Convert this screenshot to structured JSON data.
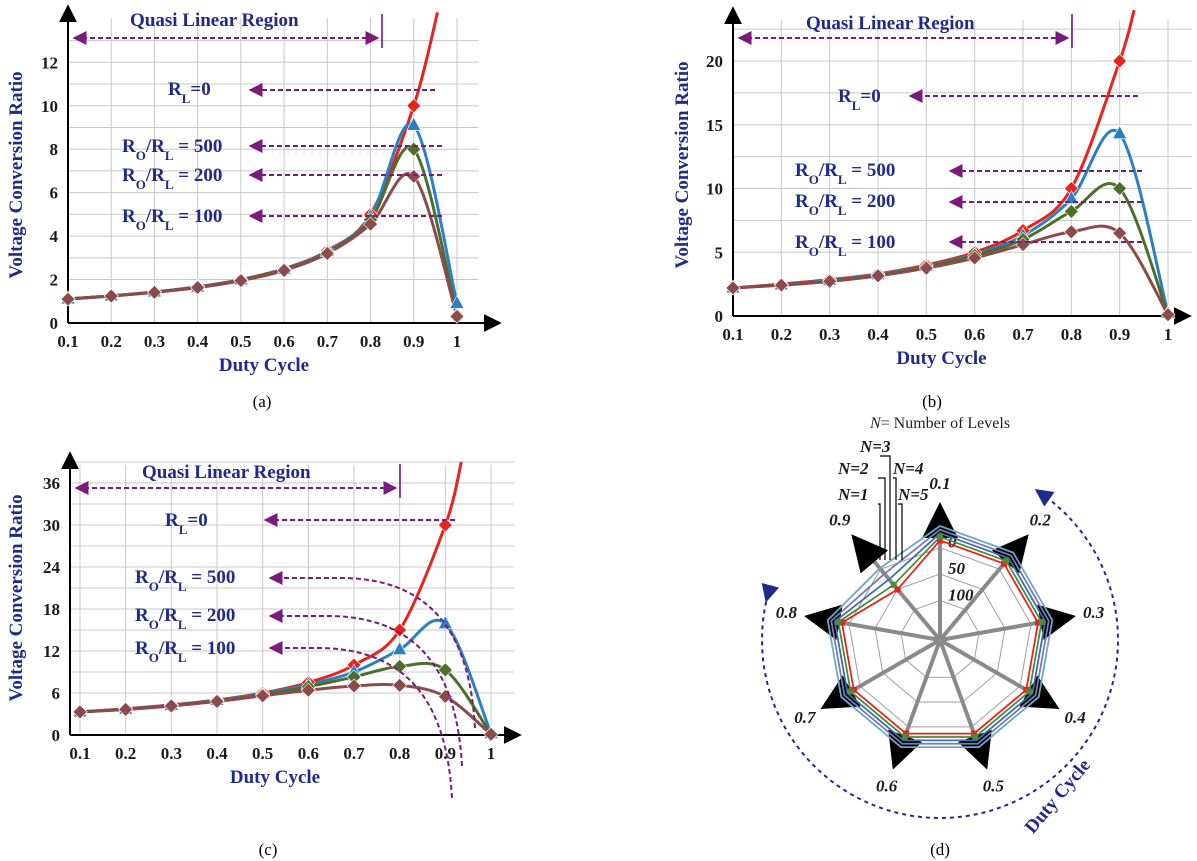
{
  "chart_data": [
    {
      "type": "line",
      "caption": "(a)",
      "xlabel": "Duty Cycle",
      "ylabel": "Voltage Conversion Ratio",
      "x_ticks": [
        "0.1",
        "0.2",
        "0.3",
        "0.4",
        "0.5",
        "0.6",
        "0.7",
        "0.8",
        "0.9",
        "1"
      ],
      "y_ticks": [
        "0",
        "2",
        "4",
        "6",
        "8",
        "10",
        "12"
      ],
      "xlim": [
        0.1,
        1.05
      ],
      "ylim": [
        0,
        14.5
      ],
      "region_label": "Quasi Linear Region",
      "region_range": [
        0.1,
        0.8
      ],
      "x": [
        0.1,
        0.2,
        0.3,
        0.4,
        0.5,
        0.6,
        0.7,
        0.8,
        0.9,
        1.0
      ],
      "series": [
        {
          "label": "Rₗ=0",
          "label_main": "R",
          "label_sub": "L",
          "label_tail": "=0",
          "color": "#e8231c",
          "marker": "diamond",
          "values": [
            1.11,
            1.25,
            1.43,
            1.67,
            2.0,
            2.5,
            3.33,
            5.0,
            10.0,
            null
          ],
          "curve_to": [
            0.955,
            14.3
          ]
        },
        {
          "label": "RO/RL = 500",
          "label_main": "R",
          "label_sub": "O",
          "label_mid": "/R",
          "label_sub2": "L",
          "label_tail": " = 500",
          "color": "#2a7fc6",
          "marker": "triangle",
          "values": [
            1.11,
            1.25,
            1.43,
            1.66,
            1.99,
            2.48,
            3.3,
            4.9,
            9.1,
            0.9
          ]
        },
        {
          "label": "RO/RL = 200",
          "label_main": "R",
          "label_sub": "O",
          "label_mid": "/R",
          "label_sub2": "L",
          "label_tail": " = 200",
          "color": "#4d6e2a",
          "marker": "diamond",
          "values": [
            1.11,
            1.25,
            1.42,
            1.65,
            1.98,
            2.46,
            3.25,
            4.75,
            8.0,
            0.35
          ]
        },
        {
          "label": "RO/RL = 100",
          "label_main": "R",
          "label_sub": "O",
          "label_mid": "/R",
          "label_sub2": "L",
          "label_tail": " = 100",
          "color": "#8c4a4a",
          "marker": "diamond",
          "values": [
            1.1,
            1.24,
            1.41,
            1.63,
            1.95,
            2.42,
            3.2,
            4.55,
            6.75,
            0.3
          ]
        }
      ]
    },
    {
      "type": "line",
      "caption": "(b)",
      "xlabel": "Duty Cycle",
      "ylabel": "Voltage Conversion Ratio",
      "x_ticks": [
        "0.1",
        "0.2",
        "0.3",
        "0.4",
        "0.5",
        "0.6",
        "0.7",
        "0.8",
        "0.9",
        "1"
      ],
      "y_ticks": [
        "0",
        "5",
        "10",
        "15",
        "20"
      ],
      "xlim": [
        0.1,
        1.05
      ],
      "ylim": [
        0,
        24
      ],
      "region_label": "Quasi Linear Region",
      "region_range": [
        0.1,
        0.8
      ],
      "x": [
        0.1,
        0.2,
        0.3,
        0.4,
        0.5,
        0.6,
        0.7,
        0.8,
        0.9,
        1.0
      ],
      "series": [
        {
          "label": "RL=0",
          "label_main": "R",
          "label_sub": "L",
          "label_tail": "=0",
          "color": "#e8231c",
          "marker": "diamond",
          "values": [
            2.2,
            2.5,
            2.85,
            3.3,
            4.0,
            5.0,
            6.7,
            10.0,
            20.0,
            null
          ],
          "curve_to": [
            0.93,
            24.0
          ]
        },
        {
          "label": "RO/RL = 500",
          "label_main": "R",
          "label_sub": "O",
          "label_mid": "/R",
          "label_sub2": "L",
          "label_tail": " = 500",
          "color": "#2a7fc6",
          "marker": "triangle",
          "values": [
            2.2,
            2.45,
            2.8,
            3.25,
            3.9,
            4.85,
            6.3,
            9.2,
            14.3,
            0.2
          ]
        },
        {
          "label": "RO/RL = 200",
          "label_main": "R",
          "label_sub": "O",
          "label_mid": "/R",
          "label_sub2": "L",
          "label_tail": " = 200",
          "color": "#4d6e2a",
          "marker": "diamond",
          "values": [
            2.2,
            2.45,
            2.75,
            3.2,
            3.85,
            4.75,
            6.0,
            8.2,
            10.0,
            0.1
          ]
        },
        {
          "label": "RO/RL = 100",
          "label_main": "R",
          "label_sub": "O",
          "label_mid": "/R",
          "label_sub2": "L",
          "label_tail": " = 100",
          "color": "#8c4a4a",
          "marker": "diamond",
          "values": [
            2.2,
            2.42,
            2.72,
            3.15,
            3.75,
            4.55,
            5.6,
            6.6,
            6.5,
            0.1
          ]
        }
      ]
    },
    {
      "type": "line",
      "caption": "(c)",
      "xlabel": "Duty Cycle",
      "ylabel": "Voltage Conversion Ratio",
      "x_ticks": [
        "0.1",
        "0.2",
        "0.3",
        "0.4",
        "0.5",
        "0.6",
        "0.7",
        "0.8",
        "0.9",
        "1"
      ],
      "y_ticks": [
        "0",
        "6",
        "12",
        "18",
        "24",
        "30",
        "36"
      ],
      "xlim": [
        0.1,
        1.05
      ],
      "ylim": [
        0,
        40
      ],
      "region_label": "Quasi Linear Region",
      "region_range": [
        0.1,
        0.8
      ],
      "x": [
        0.1,
        0.2,
        0.3,
        0.4,
        0.5,
        0.6,
        0.7,
        0.8,
        0.9,
        1.0
      ],
      "series": [
        {
          "label": "RL=0",
          "label_main": "R",
          "label_sub": "L",
          "label_tail": "=0",
          "color": "#e8231c",
          "marker": "diamond",
          "values": [
            3.3,
            3.75,
            4.3,
            5.0,
            6.0,
            7.5,
            10.0,
            15.0,
            30.0,
            null
          ],
          "curve_to": [
            0.935,
            39.0
          ]
        },
        {
          "label": "RO/RL = 500",
          "label_main": "R",
          "label_sub": "O",
          "label_mid": "/R",
          "label_sub2": "L",
          "label_tail": " = 500",
          "color": "#2a7fc6",
          "marker": "triangle",
          "values": [
            3.3,
            3.7,
            4.25,
            4.95,
            5.9,
            7.2,
            9.0,
            12.2,
            15.9,
            0.2
          ]
        },
        {
          "label": "RO/RL = 200",
          "label_main": "R",
          "label_sub": "O",
          "label_mid": "/R",
          "label_sub2": "L",
          "label_tail": " = 200",
          "color": "#4d6e2a",
          "marker": "diamond",
          "values": [
            3.3,
            3.7,
            4.2,
            4.9,
            5.75,
            6.9,
            8.3,
            9.8,
            9.3,
            0.1
          ]
        },
        {
          "label": "RO/RL = 100",
          "label_main": "R",
          "label_sub": "O",
          "label_mid": "/R",
          "label_sub2": "L",
          "label_tail": " = 100",
          "color": "#8c4a4a",
          "marker": "diamond",
          "values": [
            3.3,
            3.65,
            4.15,
            4.8,
            5.6,
            6.4,
            7.0,
            7.1,
            5.5,
            0.1
          ]
        }
      ]
    },
    {
      "type": "radar",
      "caption": "(d)",
      "title_italic": "N",
      "title_rest": "= Number of Levels",
      "spokes": [
        "0.1",
        "0.2",
        "0.3",
        "0.4",
        "0.5",
        "0.6",
        "0.7",
        "0.8",
        "0.9"
      ],
      "radial_ticks": [
        "0",
        "50",
        "100"
      ],
      "direction_label": "Duty Cycle",
      "levels": [
        "N=1",
        "N=2",
        "N=3",
        "N=4",
        "N=5"
      ],
      "series": [
        {
          "name": "N=1",
          "color": "#e8231c",
          "values": [
            0.83,
            0.83,
            0.83,
            0.83,
            0.83,
            0.83,
            0.83,
            0.83,
            0.55
          ]
        },
        {
          "name": "N=2",
          "color": "#4d8a3a",
          "values": [
            0.86,
            0.86,
            0.86,
            0.86,
            0.86,
            0.86,
            0.86,
            0.86,
            0.6
          ]
        },
        {
          "name": "N=3",
          "color": "#3a6fb5",
          "values": [
            0.89,
            0.89,
            0.89,
            0.89,
            0.89,
            0.89,
            0.89,
            0.89,
            0.66
          ]
        },
        {
          "name": "N=4",
          "color": "#7a7ab5",
          "values": [
            0.92,
            0.92,
            0.92,
            0.92,
            0.92,
            0.92,
            0.92,
            0.92,
            0.72
          ]
        },
        {
          "name": "N=5",
          "color": "#6aa8c8",
          "values": [
            0.95,
            0.95,
            0.95,
            0.95,
            0.95,
            0.95,
            0.95,
            0.95,
            0.78
          ]
        }
      ]
    }
  ]
}
